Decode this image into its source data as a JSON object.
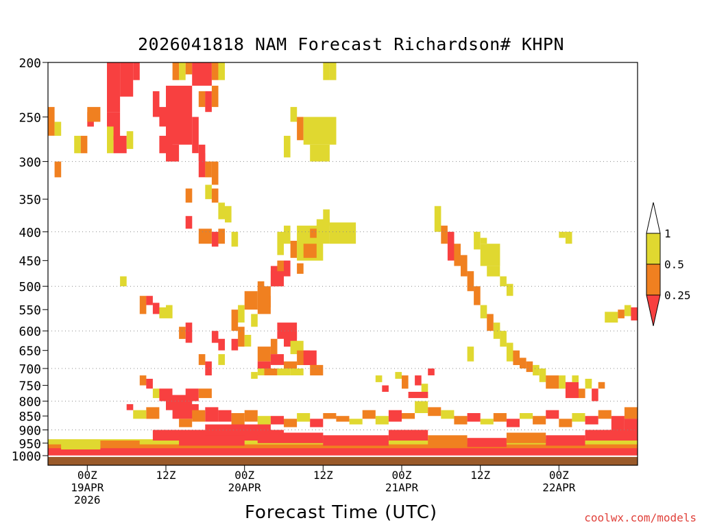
{
  "chart_data": {
    "type": "heatmap",
    "title": "2026041818 NAM Forecast Richardson# KHPN",
    "xlabel": "Forecast Time (UTC)",
    "ylabel": "",
    "credit": "coolwx.com/models",
    "x_range_hours": [
      -6,
      84
    ],
    "y_axis": {
      "scale": "log-pressure",
      "range_hPa": [
        1040,
        200
      ],
      "ticks": [
        200,
        250,
        300,
        350,
        400,
        450,
        500,
        550,
        600,
        650,
        700,
        750,
        800,
        850,
        900,
        950,
        1000
      ],
      "dotted_gridlines_at": [
        300,
        400,
        500,
        600,
        700,
        800,
        900
      ]
    },
    "x_ticks": [
      {
        "hour": 0,
        "line1": "00Z",
        "line2": "19APR",
        "line3": "2026"
      },
      {
        "hour": 12,
        "line1": "12Z",
        "line2": "",
        "line3": ""
      },
      {
        "hour": 24,
        "line1": "00Z",
        "line2": "20APR",
        "line3": ""
      },
      {
        "hour": 36,
        "line1": "12Z",
        "line2": "",
        "line3": ""
      },
      {
        "hour": 48,
        "line1": "00Z",
        "line2": "21APR",
        "line3": ""
      },
      {
        "hour": 60,
        "line1": "12Z",
        "line2": "",
        "line3": ""
      },
      {
        "hour": 72,
        "line1": "00Z",
        "line2": "22APR",
        "line3": ""
      }
    ],
    "colorbar": {
      "labels": [
        "1",
        "0.5",
        "0.25"
      ],
      "bins": [
        {
          "range": "0.5-1",
          "color": "#e0d830"
        },
        {
          "range": "0.25-0.5",
          "color": "#f08020"
        },
        {
          "range": "<0.25",
          "color": "#f84040"
        }
      ],
      "above_max_color": "#ffffff",
      "ground_color": "#9a5a2a"
    },
    "colors": {
      "yellow": "#e0d830",
      "orange": "#f08020",
      "red": "#f84040",
      "ground": "#9a5a2a"
    },
    "regions_note": "Approximate Richardson number patches as [hour_start, hour_end, p_top_hPa, p_bottom_hPa, category] with category y=0.5-1, o=0.25-0.5, r=<0.25",
    "regions": [
      [
        3,
        5,
        200,
        245,
        "r"
      ],
      [
        3,
        5,
        245,
        275,
        "r"
      ],
      [
        5,
        7,
        200,
        230,
        "r"
      ],
      [
        7,
        8,
        200,
        215,
        "r"
      ],
      [
        3,
        4,
        260,
        290,
        "y"
      ],
      [
        4,
        6,
        270,
        290,
        "r"
      ],
      [
        6,
        7,
        265,
        285,
        "y"
      ],
      [
        -6,
        -5,
        240,
        270,
        "o"
      ],
      [
        -5,
        -4,
        255,
        270,
        "y"
      ],
      [
        -2,
        -1,
        270,
        290,
        "y"
      ],
      [
        -1,
        0,
        270,
        290,
        "o"
      ],
      [
        0,
        1,
        245,
        260,
        "r"
      ],
      [
        0,
        2,
        240,
        255,
        "o"
      ],
      [
        -5,
        -4,
        300,
        320,
        "o"
      ],
      [
        10,
        11,
        225,
        250,
        "r"
      ],
      [
        11,
        12,
        240,
        260,
        "r"
      ],
      [
        12,
        16,
        220,
        280,
        "r"
      ],
      [
        11,
        13,
        270,
        290,
        "r"
      ],
      [
        12,
        14,
        280,
        300,
        "r"
      ],
      [
        16,
        17,
        250,
        290,
        "r"
      ],
      [
        17,
        18,
        280,
        300,
        "r"
      ],
      [
        13,
        14,
        200,
        215,
        "o"
      ],
      [
        14,
        15,
        200,
        215,
        "y"
      ],
      [
        15,
        16,
        200,
        210,
        "o"
      ],
      [
        16,
        19,
        200,
        220,
        "r"
      ],
      [
        19,
        20,
        200,
        215,
        "o"
      ],
      [
        20,
        21,
        200,
        215,
        "y"
      ],
      [
        17,
        18,
        225,
        240,
        "o"
      ],
      [
        18,
        19,
        225,
        245,
        "r"
      ],
      [
        19,
        20,
        220,
        240,
        "o"
      ],
      [
        17,
        18,
        290,
        320,
        "r"
      ],
      [
        18,
        19,
        300,
        320,
        "o"
      ],
      [
        19,
        20,
        300,
        330,
        "o"
      ],
      [
        18,
        19,
        330,
        350,
        "y"
      ],
      [
        19,
        20,
        335,
        355,
        "o"
      ],
      [
        20,
        21,
        355,
        380,
        "y"
      ],
      [
        21,
        22,
        360,
        385,
        "y"
      ],
      [
        15,
        16,
        335,
        355,
        "o"
      ],
      [
        15,
        16,
        375,
        395,
        "r"
      ],
      [
        36,
        37,
        200,
        215,
        "y"
      ],
      [
        37,
        38,
        200,
        215,
        "y"
      ],
      [
        31,
        32,
        240,
        255,
        "y"
      ],
      [
        32,
        33,
        250,
        275,
        "o"
      ],
      [
        33,
        38,
        250,
        280,
        "y"
      ],
      [
        34,
        37,
        280,
        300,
        "y"
      ],
      [
        30,
        31,
        270,
        295,
        "y"
      ],
      [
        22,
        23,
        400,
        425,
        "y"
      ],
      [
        17,
        19,
        395,
        420,
        "o"
      ],
      [
        19,
        20,
        400,
        425,
        "r"
      ],
      [
        20,
        21,
        395,
        420,
        "o"
      ],
      [
        28,
        29,
        470,
        500,
        "o"
      ],
      [
        28,
        30,
        460,
        500,
        "r"
      ],
      [
        30,
        31,
        450,
        480,
        "r"
      ],
      [
        31,
        32,
        415,
        445,
        "o"
      ],
      [
        29,
        30,
        450,
        470,
        "o"
      ],
      [
        29,
        30,
        400,
        440,
        "y"
      ],
      [
        30,
        31,
        390,
        420,
        "y"
      ],
      [
        32,
        36,
        390,
        450,
        "y"
      ],
      [
        33,
        35,
        420,
        445,
        "o"
      ],
      [
        35,
        37,
        380,
        420,
        "y"
      ],
      [
        36,
        37,
        365,
        390,
        "y"
      ],
      [
        37,
        41,
        385,
        420,
        "y"
      ],
      [
        34,
        35,
        395,
        410,
        "o"
      ],
      [
        32,
        33,
        455,
        475,
        "o"
      ],
      [
        26,
        28,
        500,
        560,
        "o"
      ],
      [
        26,
        27,
        490,
        510,
        "o"
      ],
      [
        27,
        28,
        520,
        545,
        "o"
      ],
      [
        24,
        26,
        510,
        550,
        "o"
      ],
      [
        23,
        24,
        540,
        580,
        "y"
      ],
      [
        22,
        23,
        550,
        600,
        "o"
      ],
      [
        25,
        26,
        560,
        590,
        "y"
      ],
      [
        29,
        32,
        580,
        620,
        "r"
      ],
      [
        30,
        32,
        600,
        640,
        "r"
      ],
      [
        28,
        29,
        620,
        660,
        "o"
      ],
      [
        26,
        28,
        640,
        680,
        "o"
      ],
      [
        31,
        33,
        625,
        660,
        "y"
      ],
      [
        32,
        34,
        650,
        690,
        "o"
      ],
      [
        33,
        35,
        650,
        690,
        "r"
      ],
      [
        28,
        30,
        660,
        690,
        "r"
      ],
      [
        26,
        28,
        680,
        700,
        "r"
      ],
      [
        27,
        29,
        700,
        720,
        "o"
      ],
      [
        29,
        31,
        700,
        720,
        "y"
      ],
      [
        30,
        32,
        680,
        700,
        "o"
      ],
      [
        31,
        33,
        700,
        720,
        "y"
      ],
      [
        34,
        36,
        690,
        720,
        "o"
      ],
      [
        26,
        27,
        700,
        720,
        "y"
      ],
      [
        25,
        26,
        710,
        730,
        "y"
      ],
      [
        23,
        24,
        590,
        640,
        "o"
      ],
      [
        22,
        23,
        620,
        650,
        "r"
      ],
      [
        24,
        25,
        610,
        640,
        "y"
      ],
      [
        19,
        20,
        600,
        630,
        "r"
      ],
      [
        20,
        21,
        620,
        650,
        "r"
      ],
      [
        17,
        18,
        660,
        690,
        "o"
      ],
      [
        18,
        19,
        680,
        720,
        "r"
      ],
      [
        20,
        21,
        660,
        690,
        "y"
      ],
      [
        53,
        54,
        360,
        400,
        "y"
      ],
      [
        54,
        55,
        390,
        420,
        "o"
      ],
      [
        55,
        56,
        400,
        450,
        "r"
      ],
      [
        56,
        57,
        420,
        460,
        "o"
      ],
      [
        57,
        58,
        440,
        480,
        "o"
      ],
      [
        58,
        59,
        470,
        510,
        "o"
      ],
      [
        59,
        60,
        500,
        540,
        "o"
      ],
      [
        60,
        61,
        540,
        570,
        "y"
      ],
      [
        61,
        62,
        560,
        600,
        "o"
      ],
      [
        62,
        63,
        580,
        620,
        "y"
      ],
      [
        63,
        64,
        600,
        640,
        "y"
      ],
      [
        64,
        65,
        630,
        680,
        "y"
      ],
      [
        65,
        66,
        650,
        690,
        "o"
      ],
      [
        66,
        67,
        670,
        700,
        "o"
      ],
      [
        67,
        68,
        680,
        710,
        "o"
      ],
      [
        68,
        69,
        690,
        720,
        "y"
      ],
      [
        69,
        70,
        700,
        740,
        "y"
      ],
      [
        70,
        72,
        720,
        760,
        "o"
      ],
      [
        72,
        73,
        720,
        760,
        "y"
      ],
      [
        73,
        75,
        740,
        790,
        "r"
      ],
      [
        74,
        75,
        720,
        740,
        "y"
      ],
      [
        75,
        76,
        760,
        790,
        "o"
      ],
      [
        76,
        77,
        730,
        760,
        "y"
      ],
      [
        77,
        78,
        760,
        800,
        "r"
      ],
      [
        59,
        60,
        400,
        430,
        "y"
      ],
      [
        60,
        63,
        420,
        460,
        "y"
      ],
      [
        61,
        63,
        460,
        480,
        "y"
      ],
      [
        63,
        64,
        480,
        500,
        "y"
      ],
      [
        64,
        65,
        495,
        520,
        "y"
      ],
      [
        60,
        61,
        410,
        420,
        "y"
      ],
      [
        72,
        73,
        400,
        410,
        "y"
      ],
      [
        73,
        74,
        400,
        420,
        "y"
      ],
      [
        79,
        81,
        555,
        580,
        "y"
      ],
      [
        81,
        82,
        550,
        570,
        "o"
      ],
      [
        82,
        83,
        540,
        565,
        "y"
      ],
      [
        83,
        84,
        545,
        575,
        "r"
      ],
      [
        76,
        77,
        730,
        745,
        "y"
      ],
      [
        78,
        79,
        740,
        760,
        "o"
      ],
      [
        52,
        53,
        700,
        720,
        "r"
      ],
      [
        58,
        59,
        640,
        680,
        "y"
      ],
      [
        44,
        45,
        720,
        740,
        "y"
      ],
      [
        47,
        48,
        710,
        730,
        "y"
      ],
      [
        48,
        49,
        720,
        760,
        "o"
      ],
      [
        50,
        51,
        720,
        750,
        "r"
      ],
      [
        51,
        52,
        745,
        790,
        "y"
      ],
      [
        49,
        52,
        770,
        790,
        "r"
      ],
      [
        45,
        46,
        750,
        770,
        "r"
      ],
      [
        5,
        6,
        480,
        500,
        "y"
      ],
      [
        8,
        9,
        520,
        560,
        "o"
      ],
      [
        9,
        10,
        520,
        540,
        "r"
      ],
      [
        10,
        11,
        535,
        560,
        "r"
      ],
      [
        11,
        12,
        545,
        570,
        "y"
      ],
      [
        12,
        13,
        540,
        570,
        "y"
      ],
      [
        15,
        16,
        580,
        630,
        "r"
      ],
      [
        14,
        15,
        590,
        620,
        "o"
      ],
      [
        8,
        9,
        720,
        750,
        "o"
      ],
      [
        9,
        10,
        730,
        760,
        "r"
      ],
      [
        10,
        11,
        760,
        790,
        "y"
      ],
      [
        11,
        13,
        760,
        800,
        "r"
      ],
      [
        12,
        16,
        780,
        830,
        "r"
      ],
      [
        13,
        17,
        810,
        860,
        "r"
      ],
      [
        15,
        17,
        760,
        800,
        "r"
      ],
      [
        17,
        19,
        760,
        790,
        "o"
      ],
      [
        18,
        20,
        820,
        870,
        "r"
      ],
      [
        20,
        22,
        830,
        870,
        "r"
      ],
      [
        22,
        24,
        840,
        880,
        "o"
      ],
      [
        16,
        18,
        830,
        870,
        "o"
      ],
      [
        14,
        16,
        860,
        890,
        "o"
      ],
      [
        9,
        11,
        820,
        860,
        "o"
      ],
      [
        7,
        9,
        830,
        860,
        "y"
      ],
      [
        6,
        7,
        810,
        830,
        "r"
      ],
      [
        24,
        26,
        830,
        870,
        "o"
      ],
      [
        26,
        28,
        850,
        880,
        "y"
      ],
      [
        28,
        30,
        850,
        880,
        "r"
      ],
      [
        30,
        32,
        860,
        890,
        "o"
      ],
      [
        32,
        34,
        840,
        870,
        "y"
      ],
      [
        34,
        36,
        860,
        890,
        "r"
      ],
      [
        36,
        38,
        840,
        860,
        "o"
      ],
      [
        38,
        40,
        850,
        870,
        "o"
      ],
      [
        40,
        42,
        860,
        880,
        "y"
      ],
      [
        42,
        44,
        830,
        860,
        "o"
      ],
      [
        44,
        46,
        850,
        880,
        "y"
      ],
      [
        46,
        48,
        830,
        870,
        "r"
      ],
      [
        48,
        50,
        840,
        860,
        "o"
      ],
      [
        50,
        52,
        800,
        840,
        "y"
      ],
      [
        52,
        54,
        820,
        850,
        "o"
      ],
      [
        54,
        56,
        830,
        860,
        "y"
      ],
      [
        56,
        58,
        850,
        880,
        "o"
      ],
      [
        58,
        60,
        840,
        870,
        "r"
      ],
      [
        60,
        62,
        860,
        880,
        "y"
      ],
      [
        62,
        64,
        840,
        870,
        "o"
      ],
      [
        64,
        66,
        860,
        890,
        "r"
      ],
      [
        66,
        68,
        840,
        860,
        "y"
      ],
      [
        68,
        70,
        850,
        880,
        "o"
      ],
      [
        70,
        72,
        830,
        860,
        "r"
      ],
      [
        72,
        74,
        860,
        890,
        "o"
      ],
      [
        74,
        76,
        840,
        870,
        "y"
      ],
      [
        76,
        78,
        850,
        880,
        "r"
      ],
      [
        78,
        80,
        830,
        860,
        "o"
      ],
      [
        80,
        82,
        850,
        880,
        "r"
      ],
      [
        82,
        84,
        820,
        860,
        "o"
      ],
      [
        82,
        84,
        860,
        920,
        "r"
      ],
      [
        80,
        82,
        880,
        930,
        "r"
      ],
      [
        -6,
        84,
        935,
        965,
        "y"
      ],
      [
        -6,
        84,
        955,
        980,
        "o"
      ],
      [
        -6,
        84,
        970,
        1000,
        "r"
      ],
      [
        10,
        30,
        900,
        940,
        "r"
      ],
      [
        18,
        28,
        880,
        920,
        "r"
      ],
      [
        14,
        24,
        920,
        960,
        "r"
      ],
      [
        26,
        36,
        910,
        950,
        "r"
      ],
      [
        36,
        46,
        920,
        960,
        "r"
      ],
      [
        46,
        52,
        900,
        940,
        "r"
      ],
      [
        52,
        58,
        920,
        960,
        "o"
      ],
      [
        58,
        64,
        930,
        965,
        "r"
      ],
      [
        64,
        70,
        910,
        950,
        "o"
      ],
      [
        70,
        76,
        920,
        960,
        "r"
      ],
      [
        76,
        84,
        900,
        940,
        "r"
      ],
      [
        2,
        8,
        940,
        965,
        "o"
      ],
      [
        -4,
        2,
        950,
        975,
        "y"
      ]
    ]
  }
}
